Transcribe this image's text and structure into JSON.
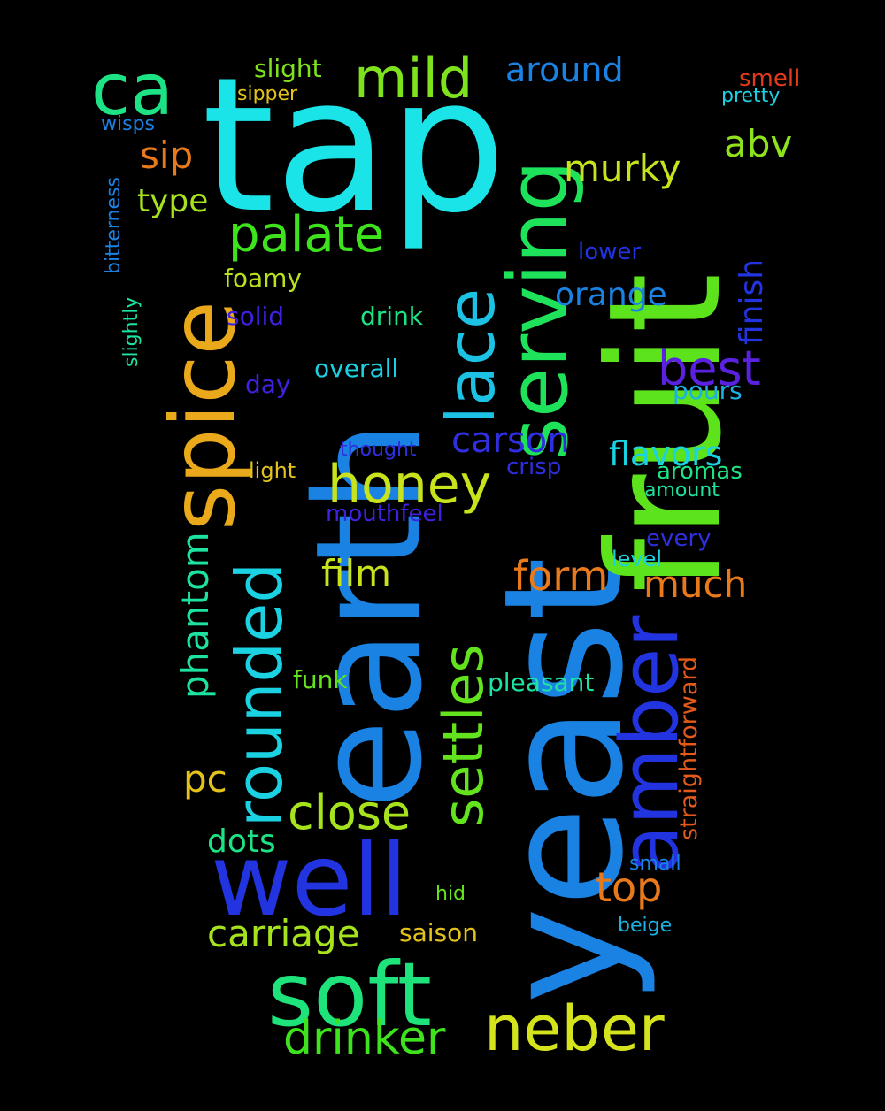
{
  "words": [
    {
      "text": "tap",
      "color": "#1be4e8"
    },
    {
      "text": "earth",
      "color": "#1a82e3"
    },
    {
      "text": "yeast",
      "color": "#1a82e3"
    },
    {
      "text": "fruit",
      "color": "#5ce31b"
    },
    {
      "text": "spice",
      "color": "#e9a91b"
    },
    {
      "text": "serving",
      "color": "#1ee35a"
    },
    {
      "text": "well",
      "color": "#2233e0"
    },
    {
      "text": "soft",
      "color": "#1ee37a"
    },
    {
      "text": "amber",
      "color": "#2233e0"
    },
    {
      "text": "neber",
      "color": "#d5e31c"
    },
    {
      "text": "rounded",
      "color": "#1bd2e3"
    },
    {
      "text": "lace",
      "color": "#1bc2e3"
    },
    {
      "text": "settles",
      "color": "#62e31d"
    },
    {
      "text": "honey",
      "color": "#c8e31c"
    },
    {
      "text": "ca",
      "color": "#1de385"
    },
    {
      "text": "mild",
      "color": "#7ee31d"
    },
    {
      "text": "palate",
      "color": "#3ee31e"
    },
    {
      "text": "drinker",
      "color": "#3ee31e"
    },
    {
      "text": "close",
      "color": "#a6e31d"
    },
    {
      "text": "carriage",
      "color": "#a6e31d"
    },
    {
      "text": "phantom",
      "color": "#1de3a0"
    },
    {
      "text": "best",
      "color": "#5a22e0"
    },
    {
      "text": "carson",
      "color": "#2f2fe0"
    },
    {
      "text": "flavors",
      "color": "#1bd2e3"
    },
    {
      "text": "murky",
      "color": "#c8e31c"
    },
    {
      "text": "much",
      "color": "#e97a1b"
    },
    {
      "text": "form",
      "color": "#e97a1b"
    },
    {
      "text": "top",
      "color": "#e97a1b"
    },
    {
      "text": "film",
      "color": "#c8e31c"
    },
    {
      "text": "dots",
      "color": "#1de385"
    },
    {
      "text": "around",
      "color": "#1a82e3"
    },
    {
      "text": "orange",
      "color": "#1a82e3"
    },
    {
      "text": "abv",
      "color": "#8ee31d"
    },
    {
      "text": "finish",
      "color": "#2233e0"
    },
    {
      "text": "sip",
      "color": "#e97a1b"
    },
    {
      "text": "pc",
      "color": "#e3c21b"
    },
    {
      "text": "type",
      "color": "#a6e31d"
    },
    {
      "text": "slight",
      "color": "#7ee31d"
    },
    {
      "text": "straightforward",
      "color": "#e35a1b"
    },
    {
      "text": "pleasant",
      "color": "#1de3a0"
    },
    {
      "text": "foamy",
      "color": "#b8e31c"
    },
    {
      "text": "drink",
      "color": "#1de385"
    },
    {
      "text": "solid",
      "color": "#3f22e0"
    },
    {
      "text": "overall",
      "color": "#1bd2e3"
    },
    {
      "text": "day",
      "color": "#3f22e0"
    },
    {
      "text": "pours",
      "color": "#1bb2e3"
    },
    {
      "text": "funk",
      "color": "#62e31d"
    },
    {
      "text": "saison",
      "color": "#e3c21b"
    },
    {
      "text": "mouthfeel",
      "color": "#3f22e0"
    },
    {
      "text": "crisp",
      "color": "#2f2fe0"
    },
    {
      "text": "aromas",
      "color": "#1de385"
    },
    {
      "text": "light",
      "color": "#e3c21b"
    },
    {
      "text": "thought",
      "color": "#2f2fe0"
    },
    {
      "text": "amount",
      "color": "#1de3a0"
    },
    {
      "text": "every",
      "color": "#2f2fe0"
    },
    {
      "text": "level",
      "color": "#1bd2e3"
    },
    {
      "text": "lower",
      "color": "#2233e0"
    },
    {
      "text": "smell",
      "color": "#e33a1b"
    },
    {
      "text": "pretty",
      "color": "#1bd2e3"
    },
    {
      "text": "sipper",
      "color": "#e3c21b"
    },
    {
      "text": "wisps",
      "color": "#1a82e3"
    },
    {
      "text": "bitterness",
      "color": "#1a82e3"
    },
    {
      "text": "slightly",
      "color": "#1de3a0"
    },
    {
      "text": "small",
      "color": "#1a82e3"
    },
    {
      "text": "beige",
      "color": "#1bb2e3"
    },
    {
      "text": "hid",
      "color": "#62e31d"
    }
  ]
}
